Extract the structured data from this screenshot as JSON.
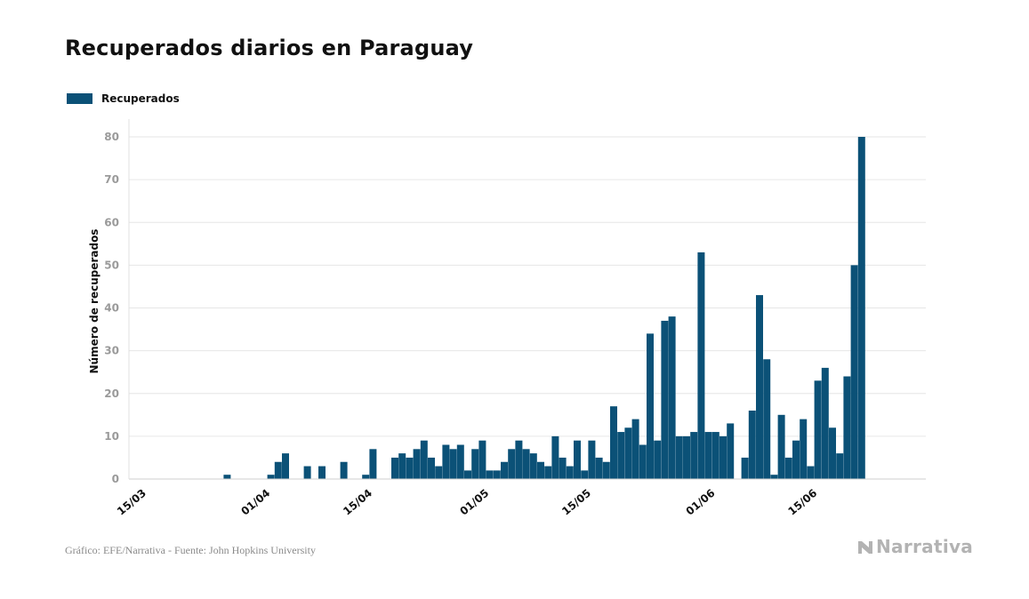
{
  "title": "Recuperados diarios en Paraguay",
  "legend": {
    "label": "Recuperados",
    "color": "#0b5177"
  },
  "source": "Gráfico: EFE/Narrativa - Fuente: John Hopkins University",
  "brand": {
    "name": "Narrativa",
    "icon": "narrativa-logo-icon",
    "color": "#b3b3b3"
  },
  "chart_data": {
    "type": "bar",
    "title": "Recuperados diarios en Paraguay",
    "ylabel": "Número de recuperados",
    "xlabel": "",
    "ylim": [
      0,
      80
    ],
    "yticks": [
      0,
      10,
      20,
      30,
      40,
      50,
      60,
      70,
      80
    ],
    "grid": true,
    "legend_position": "top-left",
    "x_tick_labels": [
      "15/03",
      "01/04",
      "15/04",
      "01/05",
      "15/05",
      "01/06",
      "15/06"
    ],
    "x_tick_positions": [
      "15/03",
      "01/04",
      "15/04",
      "01/05",
      "15/05",
      "01/06",
      "15/06"
    ],
    "series": [
      {
        "name": "Recuperados",
        "color": "#0b5177",
        "categories": [
          "15/03",
          "16/03",
          "17/03",
          "18/03",
          "19/03",
          "20/03",
          "21/03",
          "22/03",
          "23/03",
          "24/03",
          "25/03",
          "26/03",
          "27/03",
          "28/03",
          "29/03",
          "30/03",
          "31/03",
          "01/04",
          "02/04",
          "03/04",
          "04/04",
          "05/04",
          "06/04",
          "07/04",
          "08/04",
          "09/04",
          "10/04",
          "11/04",
          "12/04",
          "13/04",
          "14/04",
          "15/04",
          "16/04",
          "17/04",
          "18/04",
          "19/04",
          "20/04",
          "21/04",
          "22/04",
          "23/04",
          "24/04",
          "25/04",
          "26/04",
          "27/04",
          "28/04",
          "29/04",
          "30/04",
          "01/05",
          "02/05",
          "03/05",
          "04/05",
          "05/05",
          "06/05",
          "07/05",
          "08/05",
          "09/05",
          "10/05",
          "11/05",
          "12/05",
          "13/05",
          "14/05",
          "15/05",
          "16/05",
          "17/05",
          "18/05",
          "19/05",
          "20/05",
          "21/05",
          "22/05",
          "23/05",
          "24/05",
          "25/05",
          "26/05",
          "27/05",
          "28/05",
          "29/05",
          "30/05",
          "31/05",
          "01/06",
          "02/06",
          "03/06",
          "04/06",
          "05/06",
          "06/06",
          "07/06",
          "08/06",
          "09/06",
          "10/06",
          "11/06",
          "12/06",
          "13/06",
          "14/06",
          "15/06",
          "16/06",
          "17/06",
          "18/06",
          "19/06",
          "20/06",
          "21/06",
          "22/06"
        ],
        "values": [
          0,
          0,
          0,
          0,
          0,
          0,
          0,
          0,
          0,
          0,
          0,
          0,
          1,
          0,
          0,
          0,
          0,
          0,
          1,
          4,
          6,
          0,
          0,
          3,
          0,
          3,
          0,
          0,
          4,
          0,
          0,
          1,
          7,
          0,
          0,
          5,
          6,
          5,
          7,
          9,
          5,
          3,
          8,
          7,
          8,
          2,
          7,
          9,
          2,
          2,
          4,
          7,
          9,
          7,
          6,
          4,
          3,
          10,
          5,
          3,
          9,
          2,
          9,
          5,
          4,
          17,
          11,
          12,
          14,
          8,
          34,
          9,
          37,
          38,
          10,
          10,
          11,
          53,
          11,
          11,
          10,
          13,
          0,
          5,
          16,
          43,
          28,
          1,
          15,
          5,
          9,
          14,
          3,
          23,
          26,
          12,
          6,
          24,
          50,
          80
        ]
      }
    ]
  }
}
